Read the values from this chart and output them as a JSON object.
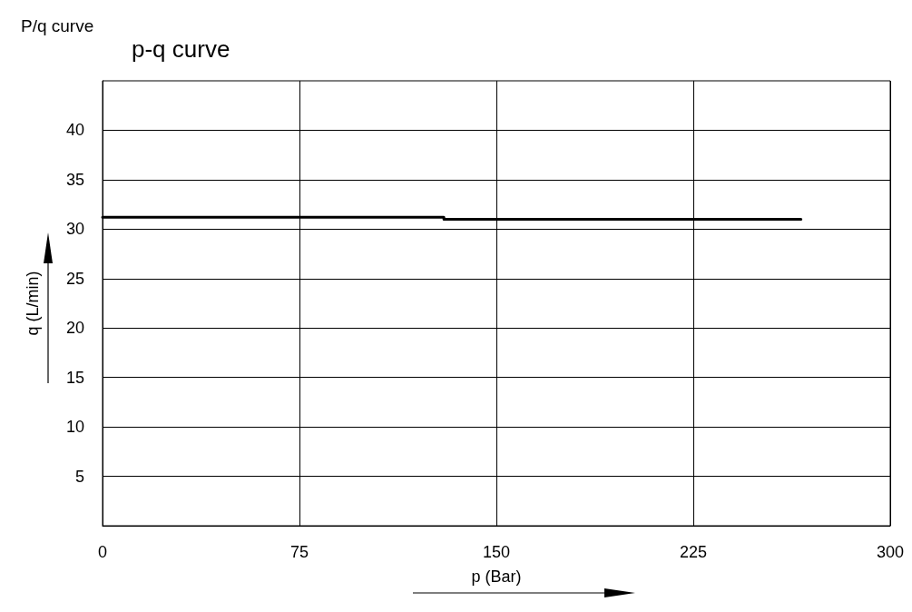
{
  "chart_data": {
    "type": "line",
    "title": "P/q curve",
    "subtitle": "p-q curve",
    "xlabel": "p (Bar)",
    "ylabel": "q (L/min)",
    "series": [
      {
        "color": "#000000",
        "x": [
          0,
          130,
          130,
          266
        ],
        "values": [
          31.2,
          31.2,
          31.0,
          31.0
        ]
      }
    ],
    "xlim": [
      0,
      300
    ],
    "xticks": [
      0,
      75,
      150,
      225,
      300
    ],
    "ylim": [
      0,
      45
    ],
    "yticks": [
      5,
      10,
      15,
      20,
      25,
      30,
      35,
      40
    ],
    "grid": true,
    "marker": "none",
    "line_style": "solid"
  }
}
